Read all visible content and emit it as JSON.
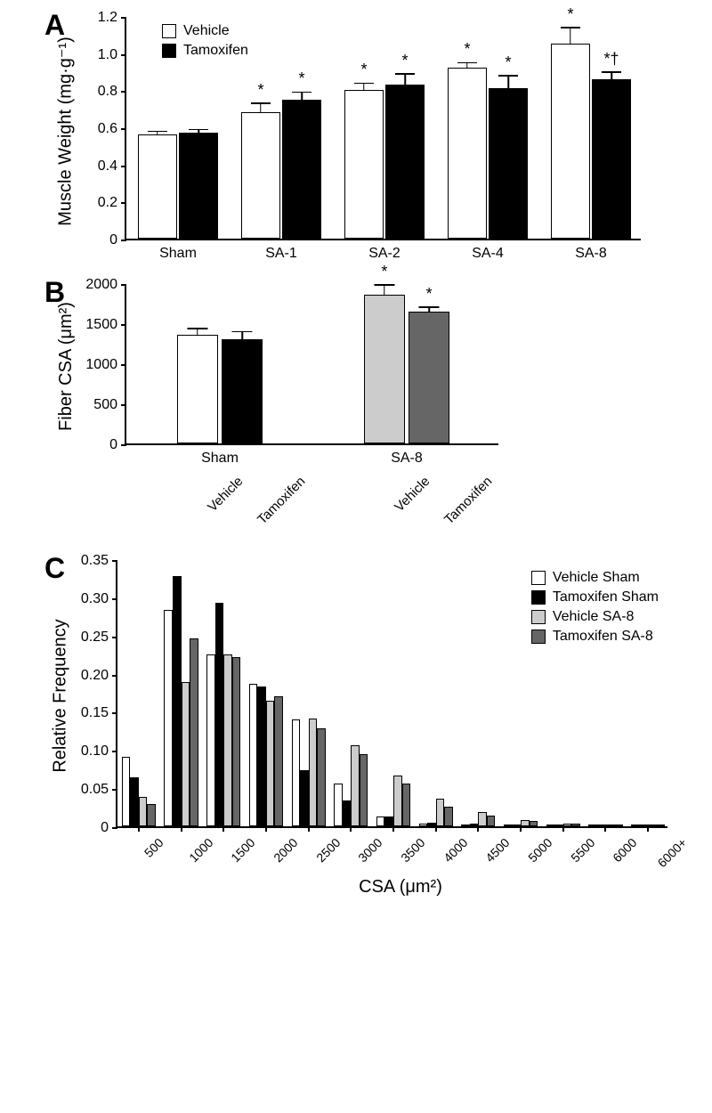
{
  "colors": {
    "vehicle": "#ffffff",
    "tamoxifen": "#000000",
    "vehicle_sa8": "#cccccc",
    "tamoxifen_sa8": "#666666",
    "axis": "#000000",
    "background": "#ffffff"
  },
  "panelA": {
    "label": "A",
    "type": "bar",
    "ylabel": "Muscle Weight (mg·g⁻¹)",
    "ylim": [
      0,
      1.2
    ],
    "ytick_step": 0.2,
    "categories": [
      "Sham",
      "SA-1",
      "SA-2",
      "SA-4",
      "SA-8"
    ],
    "series": [
      {
        "name": "Vehicle",
        "color": "#ffffff"
      },
      {
        "name": "Tamoxifen",
        "color": "#000000"
      }
    ],
    "bar_width": 0.38,
    "font_size_axis": 16,
    "font_size_label": 20,
    "data": [
      {
        "group": "Sham",
        "vehicle": {
          "val": 0.56,
          "err": 0.02,
          "annot": ""
        },
        "tamoxifen": {
          "val": 0.57,
          "err": 0.02,
          "annot": ""
        }
      },
      {
        "group": "SA-1",
        "vehicle": {
          "val": 0.68,
          "err": 0.05,
          "annot": "*"
        },
        "tamoxifen": {
          "val": 0.75,
          "err": 0.04,
          "annot": "*"
        }
      },
      {
        "group": "SA-2",
        "vehicle": {
          "val": 0.8,
          "err": 0.04,
          "annot": "*"
        },
        "tamoxifen": {
          "val": 0.83,
          "err": 0.06,
          "annot": "*"
        }
      },
      {
        "group": "SA-4",
        "vehicle": {
          "val": 0.92,
          "err": 0.03,
          "annot": "*"
        },
        "tamoxifen": {
          "val": 0.81,
          "err": 0.07,
          "annot": "*"
        }
      },
      {
        "group": "SA-8",
        "vehicle": {
          "val": 1.05,
          "err": 0.09,
          "annot": "*"
        },
        "tamoxifen": {
          "val": 0.86,
          "err": 0.04,
          "annot": "*†"
        }
      }
    ]
  },
  "panelB": {
    "label": "B",
    "type": "bar",
    "ylabel": "Fiber CSA (μm²)",
    "ylim": [
      0,
      2000
    ],
    "ytick_step": 500,
    "groups": [
      "Sham",
      "SA-8"
    ],
    "bar_width": 0.35,
    "font_size_axis": 16,
    "font_size_label": 20,
    "data": [
      {
        "group": "Sham",
        "bar": "Vehicle",
        "val": 1360,
        "err": 75,
        "color": "#ffffff",
        "annot": ""
      },
      {
        "group": "Sham",
        "bar": "Tamoxifen",
        "val": 1300,
        "err": 95,
        "color": "#000000",
        "annot": ""
      },
      {
        "group": "SA-8",
        "bar": "Vehicle",
        "val": 1860,
        "err": 120,
        "color": "#cccccc",
        "annot": "*"
      },
      {
        "group": "SA-8",
        "bar": "Tamoxifen",
        "val": 1650,
        "err": 55,
        "color": "#666666",
        "annot": "*"
      }
    ]
  },
  "panelC": {
    "label": "C",
    "type": "histogram",
    "ylabel": "Relative Frequency",
    "xlabel": "CSA (μm²)",
    "ylim": [
      0,
      0.35
    ],
    "ytick_step": 0.05,
    "bins": [
      "500",
      "1000",
      "1500",
      "2000",
      "2500",
      "3000",
      "3500",
      "4000",
      "4500",
      "5000",
      "5500",
      "6000",
      "6000+"
    ],
    "series": [
      {
        "name": "Vehicle Sham",
        "color": "#ffffff"
      },
      {
        "name": "Tamoxifen Sham",
        "color": "#000000"
      },
      {
        "name": "Vehicle SA-8",
        "color": "#cccccc"
      },
      {
        "name": "Tamoxifen SA-8",
        "color": "#666666"
      }
    ],
    "bar_width": 0.2,
    "font_size_axis": 14,
    "font_size_label": 20,
    "data": {
      "500": [
        0.091,
        0.064,
        0.038,
        0.029
      ],
      "1000": [
        0.284,
        0.328,
        0.189,
        0.246
      ],
      "1500": [
        0.225,
        0.293,
        0.225,
        0.222
      ],
      "2000": [
        0.187,
        0.183,
        0.165,
        0.17
      ],
      "2500": [
        0.14,
        0.074,
        0.141,
        0.128
      ],
      "3000": [
        0.056,
        0.034,
        0.106,
        0.094
      ],
      "3500": [
        0.013,
        0.013,
        0.066,
        0.056
      ],
      "4000": [
        0.003,
        0.005,
        0.036,
        0.026
      ],
      "4500": [
        0.001,
        0.003,
        0.019,
        0.014
      ],
      "5000": [
        0.0,
        0.002,
        0.008,
        0.007
      ],
      "5500": [
        0.0,
        0.001,
        0.004,
        0.003
      ],
      "6000": [
        0.0,
        0.0,
        0.002,
        0.002
      ],
      "6000+": [
        0.0,
        0.0,
        0.001,
        0.002
      ]
    }
  }
}
